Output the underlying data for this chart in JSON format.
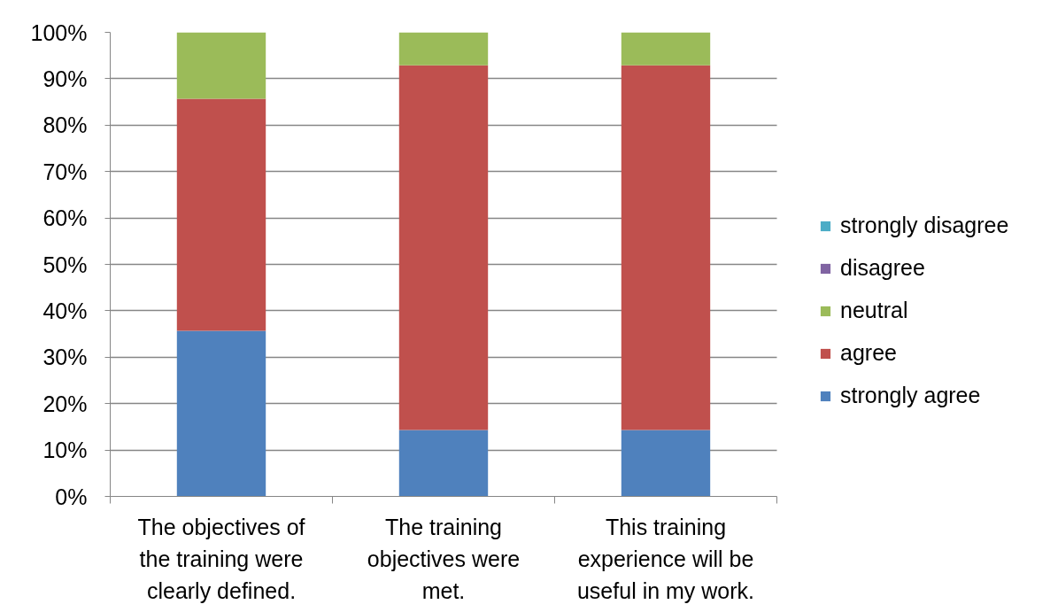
{
  "chart_data": {
    "type": "bar",
    "stacked": true,
    "categories": [
      "The objectives of the training were clearly defined.",
      "The training objectives were met.",
      "This training experience will be useful in my work."
    ],
    "series": [
      {
        "name": "strongly agree",
        "color": "#4f81bd",
        "values": [
          35.7,
          14.3,
          14.3
        ]
      },
      {
        "name": "agree",
        "color": "#c0504d",
        "values": [
          50,
          78.6,
          78.6
        ]
      },
      {
        "name": "neutral",
        "color": "#9bbb59",
        "values": [
          14.3,
          7.1,
          7.1
        ]
      },
      {
        "name": "disagree",
        "color": "#8064a2",
        "values": [
          0,
          0,
          0
        ]
      },
      {
        "name": "strongly disagree",
        "color": "#4bacc6",
        "values": [
          0,
          0,
          0
        ]
      }
    ],
    "ylim": [
      0,
      100
    ],
    "yticks": [
      {
        "value": 0,
        "label": "0%"
      },
      {
        "value": 10,
        "label": "10%"
      },
      {
        "value": 20,
        "label": "20%"
      },
      {
        "value": 30,
        "label": "30%"
      },
      {
        "value": 40,
        "label": "40%"
      },
      {
        "value": 50,
        "label": "50%"
      },
      {
        "value": 60,
        "label": "60%"
      },
      {
        "value": 70,
        "label": "70%"
      },
      {
        "value": 80,
        "label": "80%"
      },
      {
        "value": 90,
        "label": "90%"
      },
      {
        "value": 100,
        "label": "100%"
      }
    ],
    "grid": "y",
    "legend": "right"
  }
}
